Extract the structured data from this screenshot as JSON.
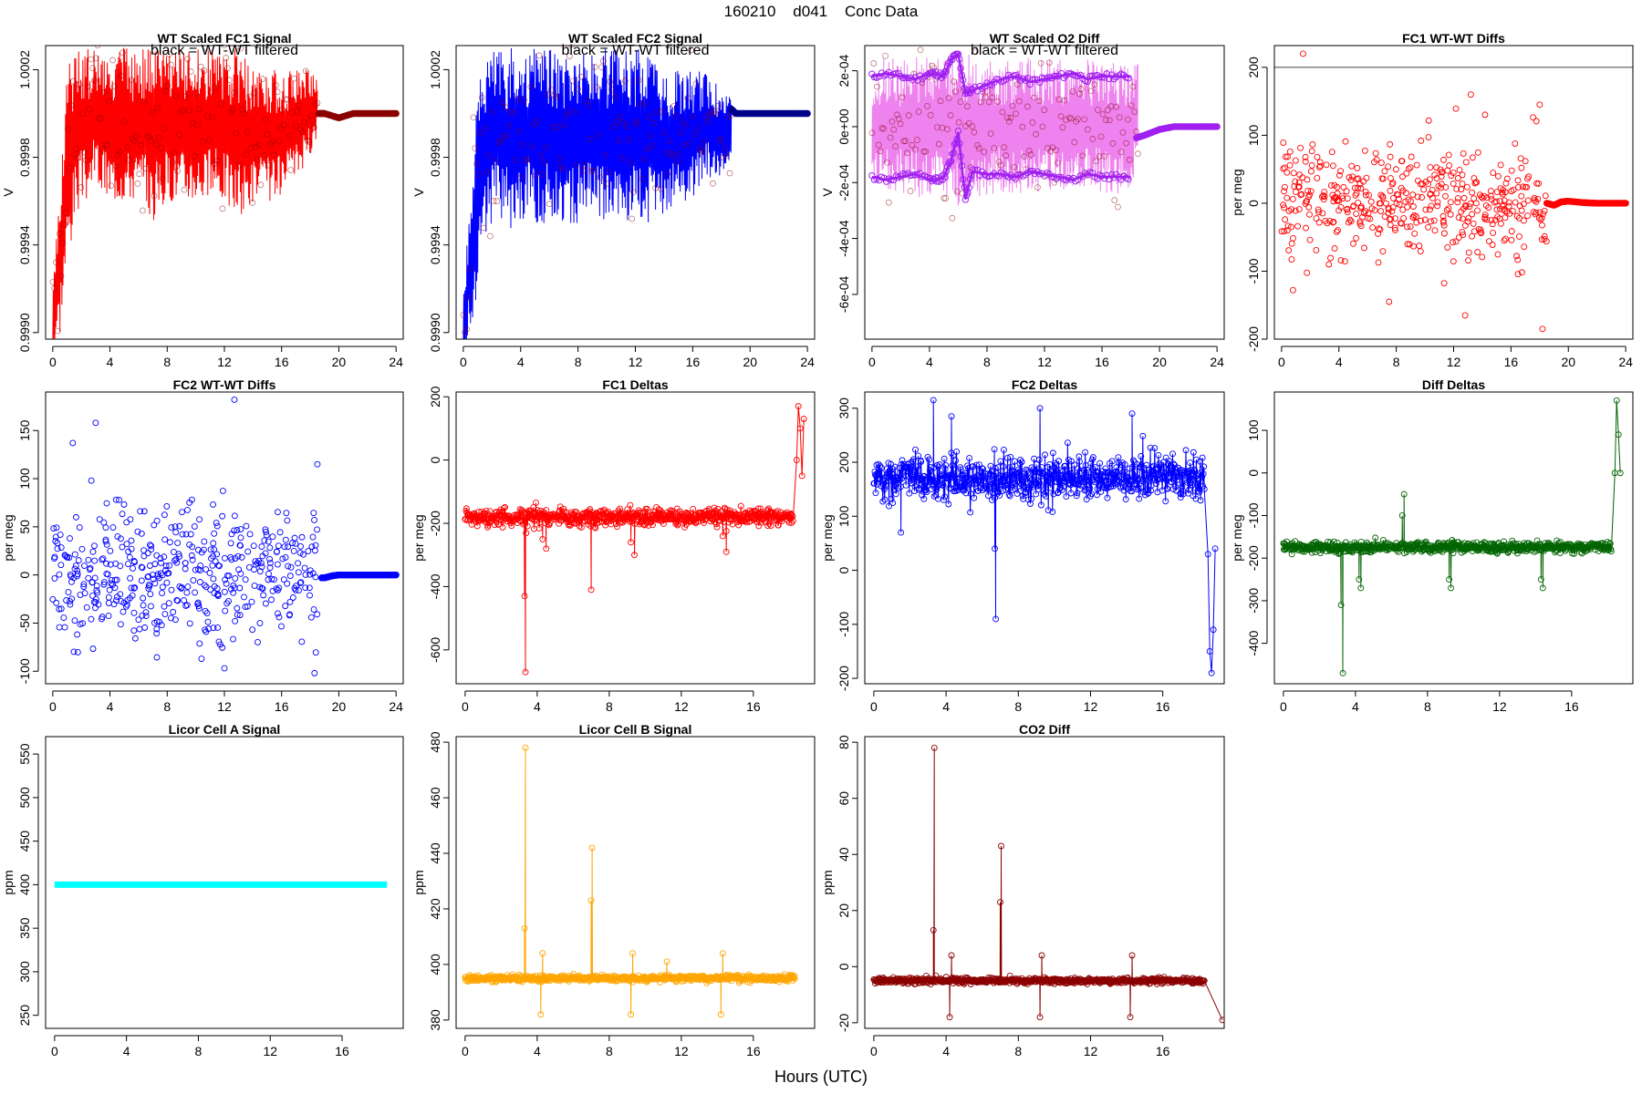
{
  "figure": {
    "title": "160210    d041    Conc Data",
    "xlabel": "Hours (UTC)"
  },
  "chart_data": [
    {
      "id": "p1",
      "type": "line",
      "title": "WT Scaled FC1 Signal",
      "annotation": "black = WT-WT filtered",
      "ylabel": "V",
      "xlim": [
        -0.5,
        24.5
      ],
      "xticks": [
        0,
        4,
        8,
        12,
        16,
        20,
        24
      ],
      "ylim": [
        0.99897,
        1.00031
      ],
      "yticks": [
        0.999,
        0.9994,
        0.9998,
        1.0002
      ],
      "ytick_labels": [
        "0.9990",
        "0.9994",
        "0.9998",
        "1.0002"
      ],
      "series": [
        {
          "color": "#ff0000",
          "kind": "band",
          "x": [
            0,
            0.5,
            1,
            1.5,
            2,
            2.5,
            3,
            3.5,
            4,
            5,
            6,
            7,
            8,
            9,
            10,
            11,
            12,
            13,
            14,
            15,
            16,
            17,
            18,
            18.5
          ],
          "low": [
            0.9989,
            0.999,
            0.9993,
            0.9995,
            0.9996,
            0.9996,
            0.9997,
            0.9996,
            0.9996,
            0.9996,
            0.9996,
            0.9995,
            0.9996,
            0.9996,
            0.9996,
            0.9996,
            0.9996,
            0.9995,
            0.9996,
            0.9996,
            0.9996,
            0.9997,
            0.9998,
            0.9999
          ],
          "high": [
            0.9993,
            0.9997,
            1.0002,
            1.0003,
            1.0003,
            1.0003,
            1.0003,
            1.0003,
            1.0003,
            1.0003,
            1.0003,
            1.0003,
            1.0003,
            1.0003,
            1.0003,
            1.0003,
            1.0003,
            1.0003,
            1.0002,
            1.0002,
            1.0002,
            1.0002,
            1.0002,
            1.0002
          ]
        },
        {
          "color": "#8b0000",
          "kind": "tail",
          "x": [
            18.6,
            19,
            20,
            21,
            22,
            23,
            24
          ],
          "y": [
            1.0,
            1.0,
            0.99998,
            1.0,
            1.0,
            1.0,
            1.0
          ]
        }
      ]
    },
    {
      "id": "p2",
      "type": "line",
      "title": "WT Scaled FC2 Signal",
      "annotation": "black = WT-WT filtered",
      "ylabel": "V",
      "xlim": [
        -0.5,
        24.5
      ],
      "xticks": [
        0,
        4,
        8,
        12,
        16,
        20,
        24
      ],
      "ylim": [
        0.99897,
        1.00031
      ],
      "yticks": [
        0.999,
        0.9994,
        0.9998,
        1.0002
      ],
      "ytick_labels": [
        "0.9990",
        "0.9994",
        "0.9998",
        "1.0002"
      ],
      "series": [
        {
          "color": "#0000ff",
          "kind": "band",
          "x": [
            0,
            0.5,
            1,
            1.5,
            2,
            2.5,
            3,
            3.5,
            4,
            5,
            6,
            7,
            8,
            9,
            10,
            11,
            12,
            13,
            14,
            15,
            16,
            17,
            18,
            18.7
          ],
          "low": [
            0.9989,
            0.999,
            0.9992,
            0.9994,
            0.9995,
            0.9995,
            0.9995,
            0.9994,
            0.9995,
            0.9995,
            0.9995,
            0.9995,
            0.9995,
            0.9995,
            0.9995,
            0.9995,
            0.9995,
            0.9995,
            0.9995,
            0.9996,
            0.9996,
            0.9997,
            0.9997,
            0.9998
          ],
          "high": [
            0.9992,
            0.9996,
            1.0001,
            1.0003,
            1.0003,
            1.0003,
            1.0003,
            1.0003,
            1.0003,
            1.0003,
            1.0003,
            1.0003,
            1.0003,
            1.0003,
            1.0003,
            1.0003,
            1.0003,
            1.0003,
            1.0002,
            1.0002,
            1.0002,
            1.0002,
            1.0001,
            1.0001
          ]
        },
        {
          "color": "#00008b",
          "kind": "tail",
          "x": [
            18.7,
            19,
            20,
            21,
            22,
            23,
            24
          ],
          "y": [
            1.00002,
            1.0,
            1.0,
            1.0,
            1.0,
            1.0,
            1.0
          ]
        }
      ]
    },
    {
      "id": "p3",
      "type": "line",
      "title": "WT Scaled O2 Diff",
      "annotation": "black = WT-WT filtered",
      "ylabel": "V",
      "xlim": [
        -0.5,
        24.5
      ],
      "xticks": [
        0,
        4,
        8,
        12,
        16,
        20,
        24
      ],
      "ylim": [
        -0.00076,
        0.00029
      ],
      "yticks": [
        -0.0006,
        -0.0004,
        -0.0002,
        0,
        0.0002
      ],
      "ytick_labels": [
        "-6e-04",
        "-4e-04",
        "-2e-04",
        "0e+00",
        "2e-04"
      ],
      "series": [
        {
          "color": "#ee82ee",
          "kind": "band",
          "x": [
            0,
            1,
            2,
            3,
            4,
            5,
            6,
            7,
            8,
            9,
            10,
            11,
            12,
            13,
            14,
            15,
            16,
            17,
            18,
            18.5
          ],
          "low": [
            -0.00024,
            -0.00025,
            -0.00024,
            -0.00026,
            -0.00025,
            -0.00024,
            -0.0003,
            -0.00026,
            -0.00025,
            -0.00024,
            -0.00024,
            -0.00025,
            -0.00024,
            -0.00024,
            -0.00025,
            -0.00024,
            -0.00024,
            -0.00024,
            -0.00024,
            -0.00016
          ],
          "high": [
            0.00024,
            0.00025,
            0.00024,
            0.00025,
            0.00025,
            0.00026,
            0.00028,
            0.00025,
            0.00025,
            0.00024,
            0.00024,
            0.00025,
            0.00024,
            0.00025,
            0.00025,
            0.00024,
            0.00024,
            0.00023,
            0.00023,
            0.00026
          ]
        },
        {
          "color": "#a020f0",
          "kind": "markers",
          "x": [
            0,
            1,
            2,
            3,
            4,
            4.5,
            5,
            5.5,
            6,
            6.5,
            7,
            8,
            9,
            10,
            11,
            12,
            13,
            14,
            15,
            16,
            17,
            18
          ],
          "y": [
            0.00018,
            0.00019,
            0.00018,
            0.00017,
            0.00019,
            0.00019,
            0.00018,
            0.00024,
            0.00026,
            0.00012,
            0.00013,
            0.00015,
            0.00017,
            0.00018,
            0.00016,
            0.00017,
            0.00018,
            0.00019,
            0.00017,
            0.00018,
            0.00018,
            0.00018
          ]
        },
        {
          "color": "#a020f0",
          "kind": "markers",
          "x": [
            0,
            1,
            2,
            3,
            4,
            4.5,
            5,
            5.5,
            6,
            6.5,
            7,
            8,
            9,
            10,
            11,
            12,
            13,
            14,
            15,
            16,
            17,
            18
          ],
          "y": [
            -0.00018,
            -0.00019,
            -0.00018,
            -0.00017,
            -0.00019,
            -0.00019,
            -0.00018,
            -0.00012,
            -2e-05,
            -0.00026,
            -0.00016,
            -0.00017,
            -0.00017,
            -0.00018,
            -0.00016,
            -0.00017,
            -0.00018,
            -0.00019,
            -0.00017,
            -0.00018,
            -0.00018,
            -0.00018
          ]
        },
        {
          "color": "#a020f0",
          "kind": "tail",
          "x": [
            18.4,
            19,
            20,
            21,
            22,
            23,
            24
          ],
          "y": [
            -4e-05,
            -3e-05,
            -1e-05,
            0.0,
            0.0,
            0.0,
            0.0
          ]
        }
      ]
    },
    {
      "id": "p4",
      "type": "scatter",
      "title": "FC1 WT-WT Diffs",
      "ylabel": "per meg",
      "xlim": [
        -0.5,
        24.5
      ],
      "xticks": [
        0,
        4,
        8,
        12,
        16,
        20,
        24
      ],
      "ylim": [
        -200,
        232
      ],
      "yticks": [
        -200,
        -100,
        0,
        100,
        200
      ],
      "hline": 200,
      "series": [
        {
          "color": "#ff0000",
          "kind": "noise",
          "x0": 0,
          "x1": 18.5,
          "n": 460,
          "sd": 42,
          "seed": 11,
          "extra_x": [
            1.5,
            13.2,
            12.8,
            18,
            0.8,
            7.5,
            18.2,
            3.3
          ],
          "extra_y": [
            220,
            160,
            -165,
            145,
            -128,
            -145,
            -185,
            -90
          ]
        },
        {
          "color": "#ff0000",
          "kind": "tail",
          "x": [
            18.5,
            19,
            19.5,
            20,
            21,
            22,
            23,
            24
          ],
          "y": [
            0,
            -3,
            2,
            3,
            1,
            0,
            0,
            0
          ]
        }
      ]
    },
    {
      "id": "p5",
      "type": "scatter",
      "title": "FC2 WT-WT Diffs",
      "ylabel": "per meg",
      "xlim": [
        -0.5,
        24.5
      ],
      "xticks": [
        0,
        4,
        8,
        12,
        16,
        20,
        24
      ],
      "ylim": [
        -113,
        190
      ],
      "yticks": [
        -100,
        -50,
        0,
        50,
        100,
        150
      ],
      "series": [
        {
          "color": "#0000ff",
          "kind": "noise",
          "x0": 0,
          "x1": 18.5,
          "n": 460,
          "sd": 36,
          "seed": 23,
          "extra_x": [
            12.7,
            3,
            1.4,
            18.5,
            18.3,
            12,
            2.7,
            10.4
          ],
          "extra_y": [
            182,
            158,
            137,
            115,
            -102,
            -97,
            98,
            -87
          ]
        },
        {
          "color": "#0000ff",
          "kind": "tail",
          "x": [
            18.8,
            19,
            19.5,
            20,
            21,
            22,
            23,
            24
          ],
          "y": [
            -3,
            -3,
            -1,
            0,
            0,
            0,
            0,
            0
          ]
        }
      ]
    },
    {
      "id": "p6",
      "type": "line",
      "title": "FC1 Deltas",
      "ylabel": "per meg",
      "xlim": [
        -0.5,
        19.4
      ],
      "xticks": [
        0,
        4,
        8,
        12,
        16
      ],
      "ylim": [
        -707,
        215
      ],
      "yticks": [
        -600,
        -400,
        -200,
        0,
        200
      ],
      "series": [
        {
          "color": "#ff0000",
          "kind": "noisyline",
          "x0": 0,
          "x1": 18.2,
          "n": 700,
          "base": -180,
          "sd": 14,
          "seed": 5,
          "spikes_x": [
            3.3,
            3.35,
            4.3,
            4.5,
            7,
            9.2,
            9.4,
            14.3,
            14.5,
            18.4,
            18.5,
            18.6,
            18.7,
            18.8
          ],
          "spikes_y": [
            -430,
            -670,
            -250,
            -280,
            -410,
            -260,
            -300,
            -240,
            -290,
            0,
            170,
            100,
            -50,
            130
          ]
        }
      ]
    },
    {
      "id": "p7",
      "type": "line",
      "title": "FC2 Deltas",
      "ylabel": "per meg",
      "xlim": [
        -0.5,
        19.4
      ],
      "xticks": [
        0,
        4,
        8,
        12,
        16
      ],
      "ylim": [
        -210,
        330
      ],
      "yticks": [
        -200,
        -100,
        0,
        100,
        200,
        300
      ],
      "series": [
        {
          "color": "#0000ff",
          "kind": "noisyline",
          "x0": 0,
          "x1": 18.3,
          "n": 700,
          "base": 170,
          "sd": 20,
          "seed": 9,
          "spikes_x": [
            1.5,
            3.3,
            4.3,
            6.7,
            6.75,
            9.2,
            14.3,
            18.5,
            18.6,
            18.7,
            18.8,
            18.9
          ],
          "spikes_y": [
            70,
            315,
            285,
            40,
            -90,
            300,
            290,
            30,
            -150,
            -190,
            -110,
            40
          ]
        }
      ]
    },
    {
      "id": "p8",
      "type": "line",
      "title": "Diff Deltas",
      "ylabel": "per meg",
      "xlim": [
        -0.5,
        19.4
      ],
      "xticks": [
        0,
        4,
        8,
        12,
        16
      ],
      "ylim": [
        -495,
        190
      ],
      "yticks": [
        -400,
        -300,
        -200,
        -100,
        0,
        100
      ],
      "series": [
        {
          "color": "#006400",
          "kind": "noisyline",
          "x0": 0,
          "x1": 18.2,
          "n": 700,
          "base": -175,
          "sd": 6,
          "seed": 3,
          "spikes_x": [
            3.2,
            3.3,
            4.2,
            4.3,
            6.6,
            6.7,
            9.2,
            9.3,
            14.3,
            14.4,
            18.4,
            18.5,
            18.6,
            18.7
          ],
          "spikes_y": [
            -310,
            -470,
            -250,
            -270,
            -100,
            -50,
            -250,
            -270,
            -250,
            -270,
            0,
            170,
            90,
            0
          ]
        }
      ]
    },
    {
      "id": "p9",
      "type": "line",
      "title": "Licor Cell A Signal",
      "ylabel": "ppm",
      "xlim": [
        -0.5,
        19.4
      ],
      "xticks": [
        0,
        4,
        8,
        12,
        16
      ],
      "ylim": [
        235,
        570
      ],
      "yticks": [
        250,
        300,
        350,
        400,
        450,
        500,
        550
      ],
      "series": [
        {
          "color": "#00ffff",
          "kind": "flat",
          "x0": 0,
          "x1": 18.5,
          "y": 400
        }
      ]
    },
    {
      "id": "p10",
      "type": "line",
      "title": "Licor Cell B Signal",
      "ylabel": "ppm",
      "xlim": [
        -0.5,
        19.4
      ],
      "xticks": [
        0,
        4,
        8,
        12,
        16
      ],
      "ylim": [
        377,
        482
      ],
      "yticks": [
        380,
        400,
        420,
        440,
        460,
        480
      ],
      "series": [
        {
          "color": "#ffa500",
          "kind": "noisyline",
          "x0": 0,
          "x1": 18.3,
          "n": 700,
          "base": 395,
          "sd": 0.5,
          "seed": 7,
          "spikes_x": [
            3.3,
            3.35,
            4.2,
            4.3,
            7,
            7.05,
            9.2,
            9.3,
            11.2,
            14.2,
            14.3
          ],
          "spikes_y": [
            413,
            478,
            382,
            404,
            423,
            442,
            382,
            404,
            401,
            382,
            404
          ]
        }
      ]
    },
    {
      "id": "p11",
      "type": "line",
      "title": "CO2 Diff",
      "ylabel": "ppm",
      "xlim": [
        -0.5,
        19.4
      ],
      "xticks": [
        0,
        4,
        8,
        12,
        16
      ],
      "ylim": [
        -22,
        82
      ],
      "yticks": [
        -20,
        0,
        20,
        40,
        60,
        80
      ],
      "series": [
        {
          "color": "#8b0000",
          "kind": "noisyline",
          "x0": 0,
          "x1": 18.3,
          "n": 700,
          "base": -5,
          "sd": 0.5,
          "seed": 13,
          "spikes_x": [
            3.3,
            3.35,
            4.2,
            4.3,
            7,
            7.05,
            9.2,
            9.3,
            14.2,
            14.3,
            19.3
          ],
          "spikes_y": [
            13,
            78,
            -18,
            4,
            23,
            43,
            -18,
            4,
            -18,
            4,
            -19
          ]
        }
      ]
    }
  ]
}
